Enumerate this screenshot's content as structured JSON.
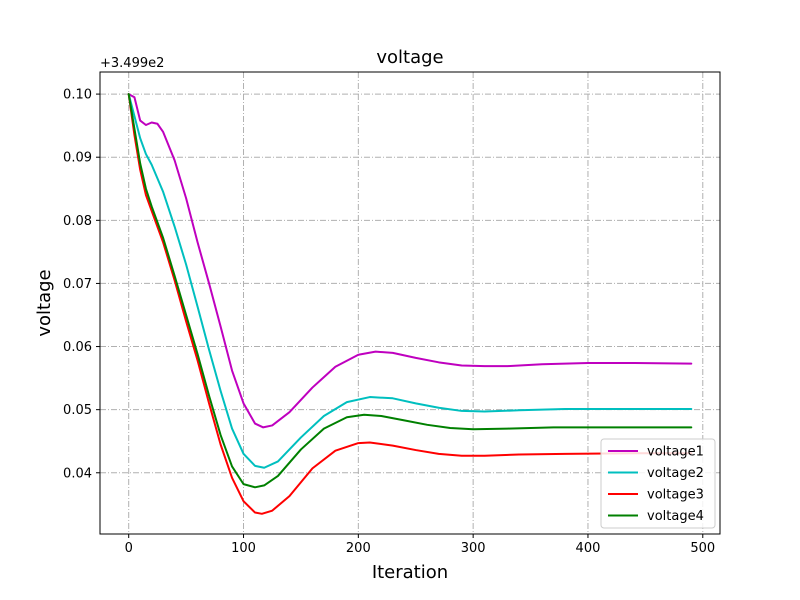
{
  "chart_data": {
    "type": "line",
    "title": "voltage",
    "xlabel": "Iteration",
    "ylabel": "voltage",
    "offset_label": "+3.499e2",
    "xlim": [
      -25,
      515
    ],
    "ylim": [
      0.0303,
      0.1035
    ],
    "xticks": [
      0,
      100,
      200,
      300,
      400,
      500
    ],
    "yticks": [
      0.04,
      0.05,
      0.06,
      0.07,
      0.08,
      0.09,
      0.1
    ],
    "ytick_labels": [
      "0.04",
      "0.05",
      "0.06",
      "0.07",
      "0.08",
      "0.09",
      "0.10"
    ],
    "grid": true,
    "legend_position": "lower-right",
    "series": [
      {
        "name": "voltage1",
        "color": "#bf00bf",
        "points": [
          [
            0,
            0.1
          ],
          [
            5,
            0.0995
          ],
          [
            10,
            0.0958
          ],
          [
            15,
            0.0951
          ],
          [
            20,
            0.0955
          ],
          [
            25,
            0.0953
          ],
          [
            30,
            0.094
          ],
          [
            40,
            0.0895
          ],
          [
            50,
            0.0835
          ],
          [
            60,
            0.0765
          ],
          [
            70,
            0.07
          ],
          [
            80,
            0.0632
          ],
          [
            90,
            0.0562
          ],
          [
            100,
            0.051
          ],
          [
            110,
            0.0478
          ],
          [
            117,
            0.0472
          ],
          [
            125,
            0.0475
          ],
          [
            140,
            0.0496
          ],
          [
            160,
            0.0535
          ],
          [
            180,
            0.0568
          ],
          [
            200,
            0.0587
          ],
          [
            215,
            0.0592
          ],
          [
            230,
            0.059
          ],
          [
            250,
            0.0582
          ],
          [
            270,
            0.0575
          ],
          [
            290,
            0.057
          ],
          [
            310,
            0.0569
          ],
          [
            330,
            0.0569
          ],
          [
            360,
            0.0572
          ],
          [
            400,
            0.0574
          ],
          [
            440,
            0.0574
          ],
          [
            490,
            0.0573
          ]
        ]
      },
      {
        "name": "voltage2",
        "color": "#00bfbf",
        "points": [
          [
            0,
            0.1
          ],
          [
            5,
            0.0965
          ],
          [
            10,
            0.093
          ],
          [
            15,
            0.0905
          ],
          [
            20,
            0.0888
          ],
          [
            30,
            0.0845
          ],
          [
            40,
            0.079
          ],
          [
            50,
            0.073
          ],
          [
            60,
            0.0663
          ],
          [
            70,
            0.0595
          ],
          [
            80,
            0.053
          ],
          [
            90,
            0.047
          ],
          [
            100,
            0.043
          ],
          [
            110,
            0.0411
          ],
          [
            118,
            0.0408
          ],
          [
            130,
            0.0418
          ],
          [
            150,
            0.0456
          ],
          [
            170,
            0.049
          ],
          [
            190,
            0.0512
          ],
          [
            210,
            0.052
          ],
          [
            230,
            0.0518
          ],
          [
            250,
            0.051
          ],
          [
            270,
            0.0503
          ],
          [
            290,
            0.0498
          ],
          [
            310,
            0.0497
          ],
          [
            340,
            0.0499
          ],
          [
            380,
            0.0501
          ],
          [
            440,
            0.0501
          ],
          [
            490,
            0.0501
          ]
        ]
      },
      {
        "name": "voltage3",
        "color": "#ff0000",
        "points": [
          [
            0,
            0.1
          ],
          [
            5,
            0.0935
          ],
          [
            10,
            0.088
          ],
          [
            15,
            0.084
          ],
          [
            20,
            0.0815
          ],
          [
            30,
            0.0765
          ],
          [
            40,
            0.0705
          ],
          [
            50,
            0.064
          ],
          [
            60,
            0.0578
          ],
          [
            70,
            0.051
          ],
          [
            80,
            0.0445
          ],
          [
            90,
            0.0392
          ],
          [
            100,
            0.0355
          ],
          [
            110,
            0.0337
          ],
          [
            116,
            0.0335
          ],
          [
            125,
            0.034
          ],
          [
            140,
            0.0363
          ],
          [
            160,
            0.0407
          ],
          [
            180,
            0.0435
          ],
          [
            200,
            0.0447
          ],
          [
            210,
            0.0448
          ],
          [
            230,
            0.0443
          ],
          [
            250,
            0.0436
          ],
          [
            270,
            0.043
          ],
          [
            290,
            0.0427
          ],
          [
            310,
            0.0427
          ],
          [
            340,
            0.0429
          ],
          [
            380,
            0.043
          ],
          [
            440,
            0.0431
          ],
          [
            490,
            0.0431
          ]
        ]
      },
      {
        "name": "voltage4",
        "color": "#008000",
        "points": [
          [
            0,
            0.1
          ],
          [
            5,
            0.0945
          ],
          [
            10,
            0.089
          ],
          [
            15,
            0.085
          ],
          [
            20,
            0.0822
          ],
          [
            30,
            0.0772
          ],
          [
            40,
            0.0712
          ],
          [
            50,
            0.065
          ],
          [
            60,
            0.0588
          ],
          [
            70,
            0.0522
          ],
          [
            80,
            0.046
          ],
          [
            90,
            0.041
          ],
          [
            100,
            0.0382
          ],
          [
            110,
            0.0377
          ],
          [
            118,
            0.038
          ],
          [
            130,
            0.0395
          ],
          [
            150,
            0.0437
          ],
          [
            170,
            0.047
          ],
          [
            190,
            0.0488
          ],
          [
            205,
            0.0492
          ],
          [
            220,
            0.049
          ],
          [
            240,
            0.0483
          ],
          [
            260,
            0.0476
          ],
          [
            280,
            0.0471
          ],
          [
            300,
            0.0469
          ],
          [
            330,
            0.047
          ],
          [
            370,
            0.0472
          ],
          [
            430,
            0.0472
          ],
          [
            490,
            0.0472
          ]
        ]
      }
    ]
  }
}
